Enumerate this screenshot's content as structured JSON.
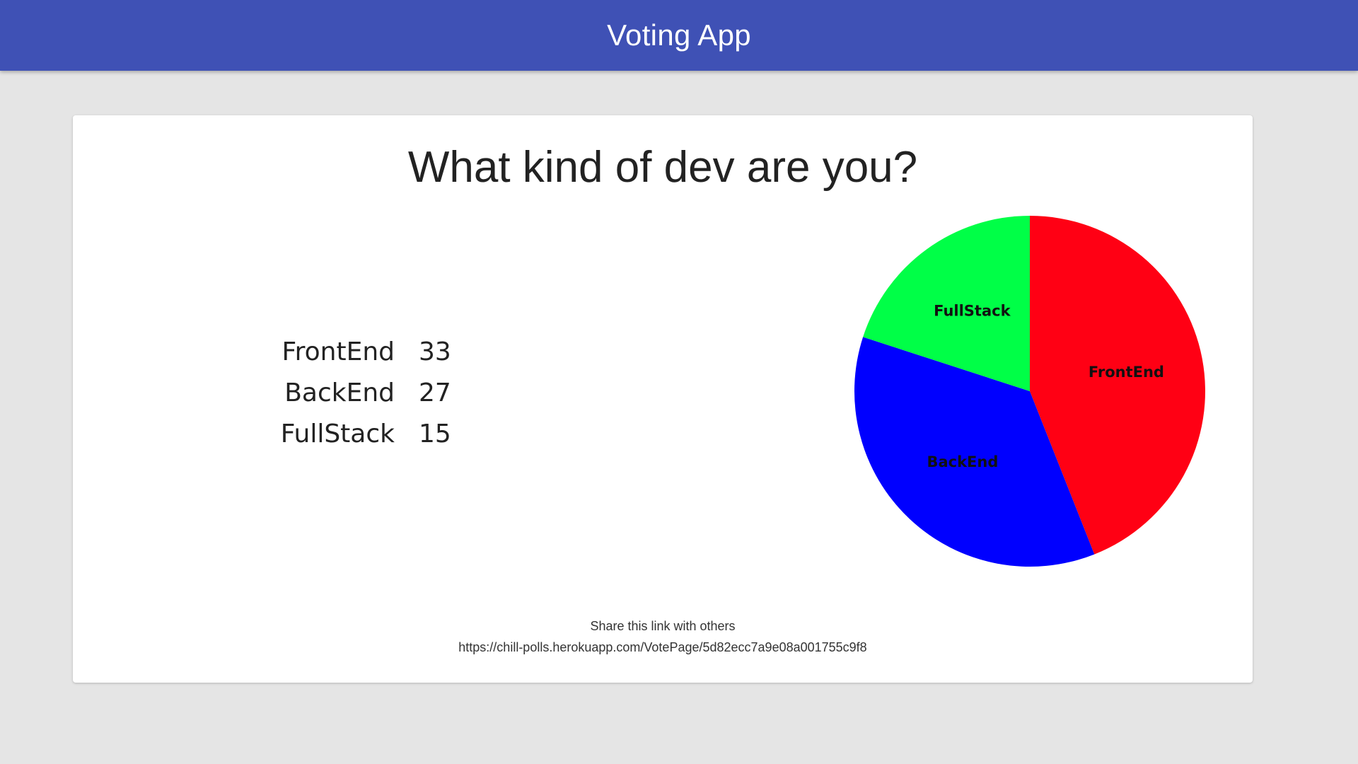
{
  "app_bar": {
    "title": "Voting App",
    "color": "#3f51b5"
  },
  "poll": {
    "question": "What kind of dev are you?",
    "options": [
      {
        "label": "FrontEnd",
        "votes": 33
      },
      {
        "label": "BackEnd",
        "votes": 27
      },
      {
        "label": "FullStack",
        "votes": 15
      }
    ]
  },
  "chart_data": {
    "type": "pie",
    "categories": [
      "FrontEnd",
      "BackEnd",
      "FullStack"
    ],
    "values": [
      33,
      27,
      15
    ],
    "colors": [
      "#ff0014",
      "#0000ff",
      "#00ff47"
    ],
    "labels_inside": true
  },
  "share": {
    "text": "Share this link with others",
    "link": "https://chill-polls.herokuapp.com/VotePage/5d82ecc7a9e08a001755c9f8"
  }
}
